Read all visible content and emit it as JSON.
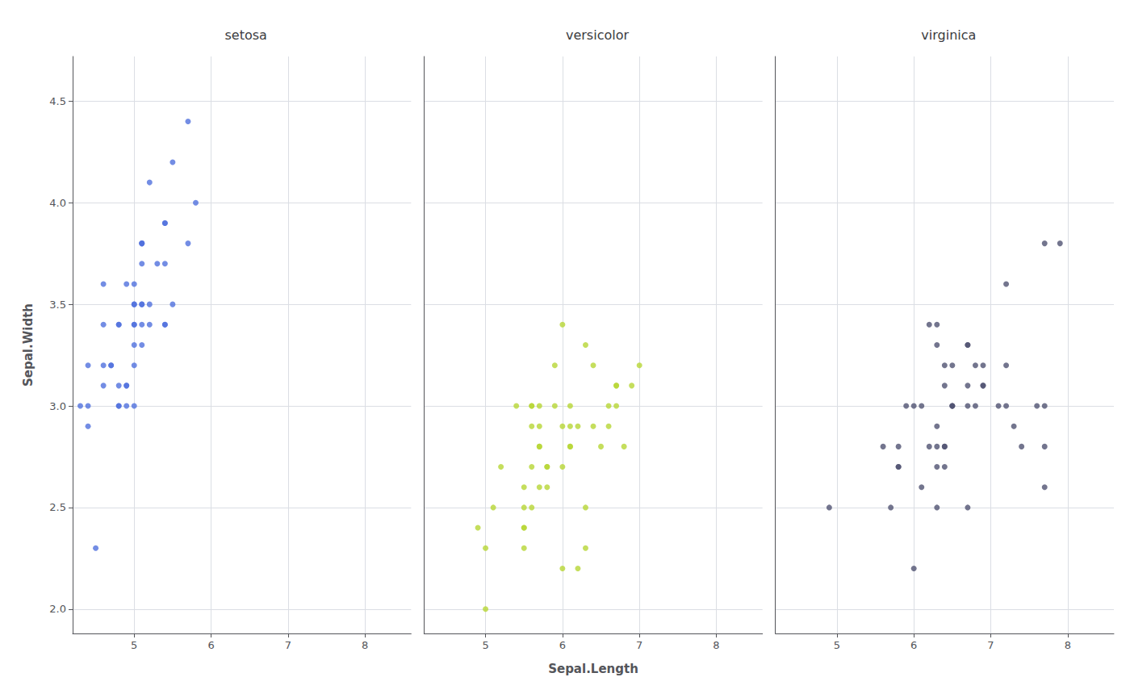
{
  "chart_data": [
    {
      "type": "scatter",
      "title": "setosa",
      "ylabel": "Sepal.Width",
      "x": [
        5.1,
        4.9,
        4.7,
        4.6,
        5.0,
        5.4,
        4.6,
        5.0,
        4.4,
        4.9,
        5.4,
        4.8,
        4.8,
        4.3,
        5.8,
        5.7,
        5.4,
        5.1,
        5.7,
        5.1,
        5.4,
        5.1,
        4.6,
        5.1,
        4.8,
        5.0,
        5.0,
        5.2,
        5.2,
        4.7,
        4.8,
        5.4,
        5.2,
        5.5,
        4.9,
        5.0,
        5.5,
        4.9,
        4.4,
        5.1,
        5.0,
        4.5,
        4.4,
        5.0,
        5.1,
        4.8,
        5.1,
        4.6,
        5.3,
        5.0
      ],
      "values": [
        3.5,
        3.0,
        3.2,
        3.1,
        3.6,
        3.9,
        3.4,
        3.4,
        2.9,
        3.1,
        3.7,
        3.4,
        3.0,
        3.0,
        4.0,
        4.4,
        3.9,
        3.5,
        3.8,
        3.8,
        3.4,
        3.7,
        3.6,
        3.3,
        3.4,
        3.0,
        3.4,
        3.5,
        3.4,
        3.2,
        3.1,
        3.4,
        4.1,
        4.2,
        3.1,
        3.2,
        3.5,
        3.6,
        3.0,
        3.4,
        3.5,
        2.3,
        3.2,
        3.5,
        3.8,
        3.0,
        3.8,
        3.2,
        3.7,
        3.3
      ],
      "xlim": [
        4.2,
        8.6
      ],
      "ylim": [
        1.88,
        4.72
      ],
      "xticks": [
        5,
        6,
        7,
        8
      ],
      "yticks": [
        {
          "value": 2.0,
          "label": "2.0"
        },
        2.5,
        {
          "value": 3.0,
          "label": "3.0"
        },
        3.5,
        {
          "value": 4.0,
          "label": "4.0"
        },
        4.5
      ],
      "grid": true
    },
    {
      "type": "scatter",
      "title": "versicolor",
      "xlabel": "Sepal.Length",
      "x": [
        7.0,
        6.4,
        6.9,
        5.5,
        6.5,
        5.7,
        6.3,
        4.9,
        6.6,
        5.2,
        5.0,
        5.9,
        6.0,
        6.1,
        5.6,
        6.7,
        5.6,
        5.8,
        6.2,
        5.6,
        5.9,
        6.1,
        6.3,
        6.1,
        6.4,
        6.6,
        6.8,
        6.7,
        6.0,
        5.7,
        5.5,
        5.5,
        5.8,
        6.0,
        5.4,
        6.0,
        6.7,
        6.3,
        5.6,
        5.5,
        5.5,
        6.1,
        5.8,
        5.0,
        5.6,
        5.7,
        5.7,
        6.2,
        5.1,
        5.7
      ],
      "values": [
        3.2,
        3.2,
        3.1,
        2.3,
        2.8,
        2.8,
        3.3,
        2.4,
        2.9,
        2.7,
        2.0,
        3.0,
        2.2,
        2.9,
        2.9,
        3.1,
        3.0,
        2.7,
        2.2,
        2.5,
        3.2,
        2.8,
        2.5,
        2.8,
        2.9,
        3.0,
        2.8,
        3.0,
        2.9,
        2.6,
        2.4,
        2.4,
        2.7,
        2.7,
        3.0,
        3.4,
        3.1,
        2.3,
        3.0,
        2.5,
        2.6,
        3.0,
        2.6,
        2.3,
        2.7,
        3.0,
        2.9,
        2.9,
        2.5,
        2.8
      ],
      "xlim": [
        4.2,
        8.6
      ],
      "ylim": [
        1.88,
        4.72
      ],
      "xticks": [
        5,
        6,
        7,
        8
      ],
      "yticks": [
        {
          "value": 2.0,
          "label": "2.0"
        },
        2.5,
        {
          "value": 3.0,
          "label": "3.0"
        },
        3.5,
        {
          "value": 4.0,
          "label": "4.0"
        },
        4.5
      ],
      "grid": true,
      "tick_labels": "x"
    },
    {
      "type": "scatter",
      "title": "virginica",
      "x": [
        6.3,
        5.8,
        7.1,
        6.3,
        6.5,
        7.6,
        4.9,
        7.3,
        6.7,
        7.2,
        6.5,
        6.4,
        6.8,
        5.7,
        5.8,
        6.4,
        6.5,
        7.7,
        7.7,
        6.0,
        6.9,
        5.6,
        7.7,
        6.3,
        6.7,
        7.2,
        6.2,
        6.1,
        6.4,
        7.2,
        7.4,
        7.9,
        6.4,
        6.3,
        6.1,
        7.7,
        6.3,
        6.4,
        6.0,
        6.9,
        6.7,
        6.9,
        5.8,
        6.8,
        6.7,
        6.7,
        6.3,
        6.5,
        6.2,
        5.9
      ],
      "values": [
        3.3,
        2.7,
        3.0,
        2.9,
        3.0,
        3.0,
        2.5,
        2.9,
        2.5,
        3.6,
        3.2,
        2.7,
        3.0,
        2.5,
        2.8,
        3.2,
        3.0,
        3.8,
        2.6,
        2.2,
        3.2,
        2.8,
        2.8,
        2.7,
        3.3,
        3.2,
        2.8,
        3.0,
        2.8,
        3.0,
        2.8,
        3.8,
        2.8,
        2.8,
        2.6,
        3.0,
        3.4,
        3.1,
        3.0,
        3.1,
        3.1,
        3.1,
        2.7,
        3.2,
        3.3,
        3.0,
        2.5,
        3.0,
        3.4,
        3.0
      ],
      "xlim": [
        4.2,
        8.6
      ],
      "ylim": [
        1.88,
        4.72
      ],
      "xticks": [
        5,
        6,
        7,
        8
      ],
      "yticks": [
        {
          "value": 2.0,
          "label": "2.0"
        },
        2.5,
        {
          "value": 3.0,
          "label": "3.0"
        },
        3.5,
        {
          "value": 4.0,
          "label": "4.0"
        },
        4.5
      ],
      "grid": true,
      "tick_labels": "x"
    }
  ]
}
